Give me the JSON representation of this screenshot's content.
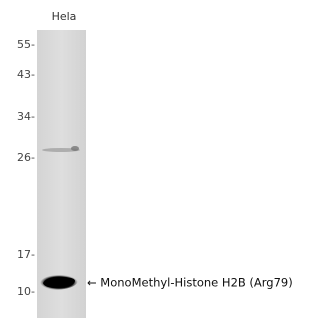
{
  "lane_label": "Hela",
  "markers": [
    "55-",
    "43-",
    "34-",
    "26-",
    "17-",
    "10-"
  ],
  "band_label": "← MonoMethyl-Histone H2B (Arg79)"
}
